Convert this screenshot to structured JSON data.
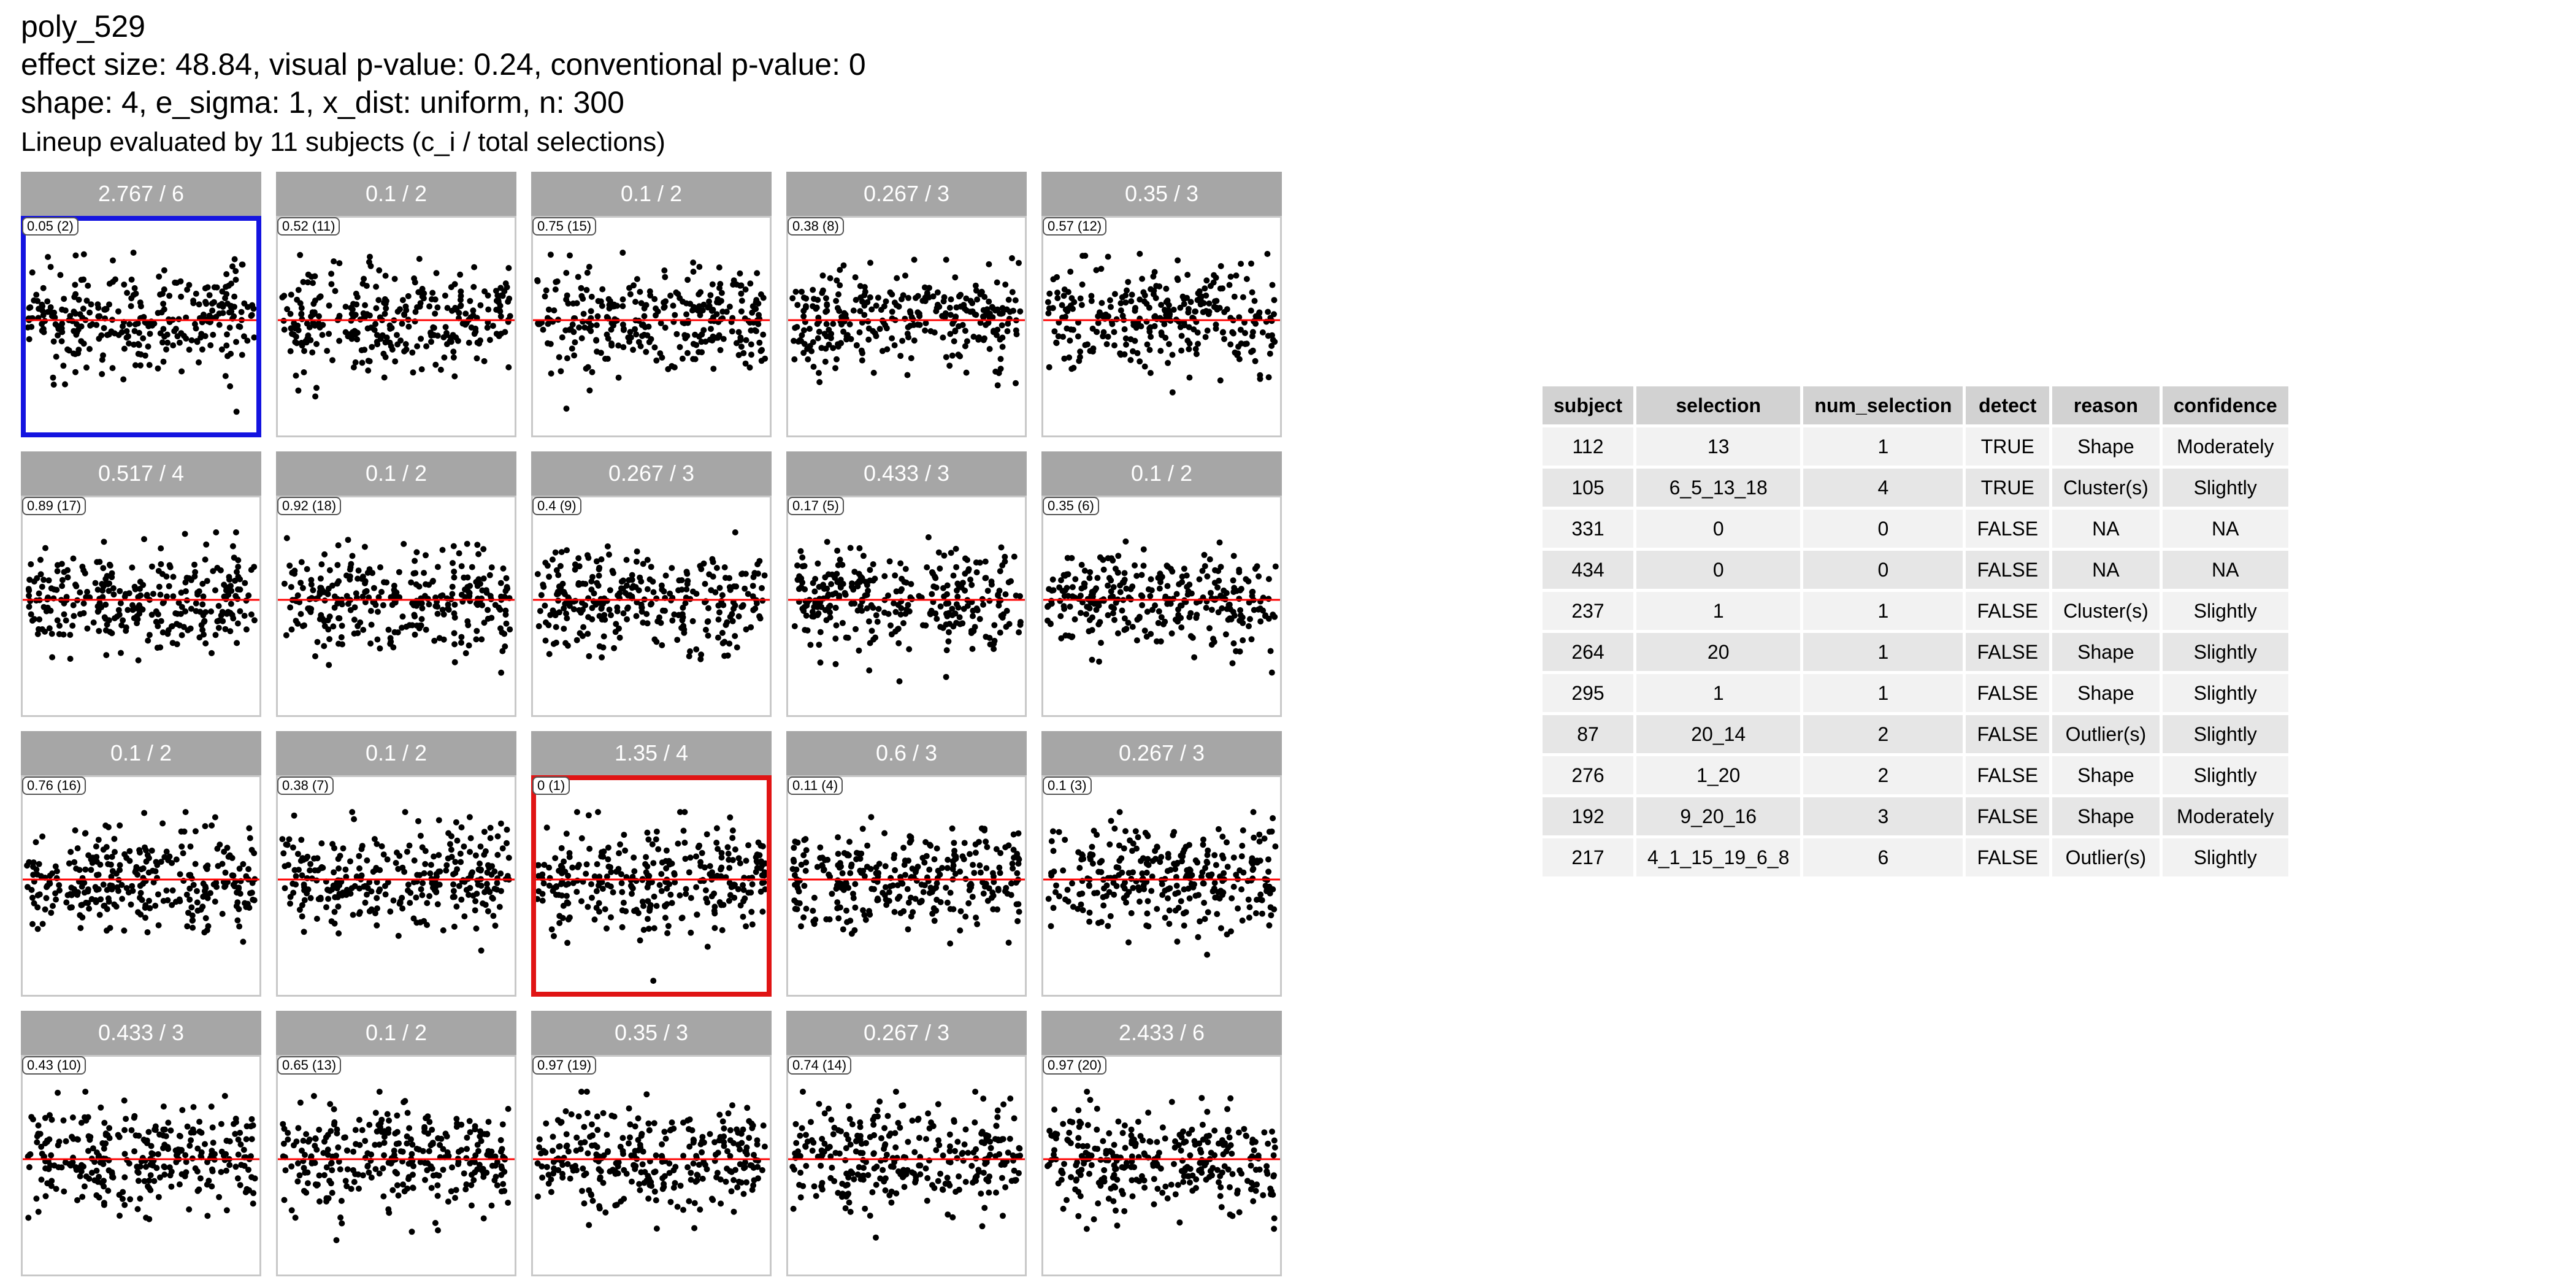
{
  "header": {
    "title": "poly_529",
    "stats": "effect size: 48.84, visual p-value: 0.24, conventional p-value: 0",
    "params": "shape: 4, e_sigma: 1, x_dist: uniform, n: 300",
    "caption": "Lineup evaluated by 11 subjects (c_i / total selections)"
  },
  "colors": {
    "strip": "#a6a6a6",
    "reference_line": "#ff0000",
    "selected_blue": "#1414e0",
    "selected_red": "#e01414",
    "points": "#000000"
  },
  "chart_data": {
    "type": "scatter",
    "title": "poly_529",
    "xlabel": "",
    "ylabel": "",
    "grid": false,
    "reference_line": {
      "y": 0,
      "color": "red"
    },
    "note": "20-panel lineup of residual scatterplots with n=300 points each",
    "panels": [
      {
        "strip": "2.767 / 6",
        "tag": "0.05 (2)",
        "highlight": "blue"
      },
      {
        "strip": "0.1 / 2",
        "tag": "0.52 (11)",
        "highlight": ""
      },
      {
        "strip": "0.1 / 2",
        "tag": "0.75 (15)",
        "highlight": ""
      },
      {
        "strip": "0.267 / 3",
        "tag": "0.38 (8)",
        "highlight": ""
      },
      {
        "strip": "0.35 / 3",
        "tag": "0.57 (12)",
        "highlight": ""
      },
      {
        "strip": "0.517 / 4",
        "tag": "0.89 (17)",
        "highlight": ""
      },
      {
        "strip": "0.1 / 2",
        "tag": "0.92 (18)",
        "highlight": ""
      },
      {
        "strip": "0.267 / 3",
        "tag": "0.4 (9)",
        "highlight": ""
      },
      {
        "strip": "0.433 / 3",
        "tag": "0.17 (5)",
        "highlight": ""
      },
      {
        "strip": "0.1 / 2",
        "tag": "0.35 (6)",
        "highlight": ""
      },
      {
        "strip": "0.1 / 2",
        "tag": "0.76 (16)",
        "highlight": ""
      },
      {
        "strip": "0.1 / 2",
        "tag": "0.38 (7)",
        "highlight": ""
      },
      {
        "strip": "1.35 / 4",
        "tag": "0 (1)",
        "highlight": "red"
      },
      {
        "strip": "0.6 / 3",
        "tag": "0.11 (4)",
        "highlight": ""
      },
      {
        "strip": "0.267 / 3",
        "tag": "0.1 (3)",
        "highlight": ""
      },
      {
        "strip": "0.433 / 3",
        "tag": "0.43 (10)",
        "highlight": ""
      },
      {
        "strip": "0.1 / 2",
        "tag": "0.65 (13)",
        "highlight": ""
      },
      {
        "strip": "0.35 / 3",
        "tag": "0.97 (19)",
        "highlight": ""
      },
      {
        "strip": "0.267 / 3",
        "tag": "0.74 (14)",
        "highlight": ""
      },
      {
        "strip": "2.433 / 6",
        "tag": "0.97 (20)",
        "highlight": ""
      }
    ]
  },
  "table": {
    "columns": [
      "subject",
      "selection",
      "num_selection",
      "detect",
      "reason",
      "confidence"
    ],
    "rows": [
      [
        "112",
        "13",
        "1",
        "TRUE",
        "Shape",
        "Moderately"
      ],
      [
        "105",
        "6_5_13_18",
        "4",
        "TRUE",
        "Cluster(s)",
        "Slightly"
      ],
      [
        "331",
        "0",
        "0",
        "FALSE",
        "NA",
        "NA"
      ],
      [
        "434",
        "0",
        "0",
        "FALSE",
        "NA",
        "NA"
      ],
      [
        "237",
        "1",
        "1",
        "FALSE",
        "Cluster(s)",
        "Slightly"
      ],
      [
        "264",
        "20",
        "1",
        "FALSE",
        "Shape",
        "Slightly"
      ],
      [
        "295",
        "1",
        "1",
        "FALSE",
        "Shape",
        "Slightly"
      ],
      [
        "87",
        "20_14",
        "2",
        "FALSE",
        "Outlier(s)",
        "Slightly"
      ],
      [
        "276",
        "1_20",
        "2",
        "FALSE",
        "Shape",
        "Slightly"
      ],
      [
        "192",
        "9_20_16",
        "3",
        "FALSE",
        "Shape",
        "Moderately"
      ],
      [
        "217",
        "4_1_15_19_6_8",
        "6",
        "FALSE",
        "Outlier(s)",
        "Slightly"
      ]
    ]
  }
}
